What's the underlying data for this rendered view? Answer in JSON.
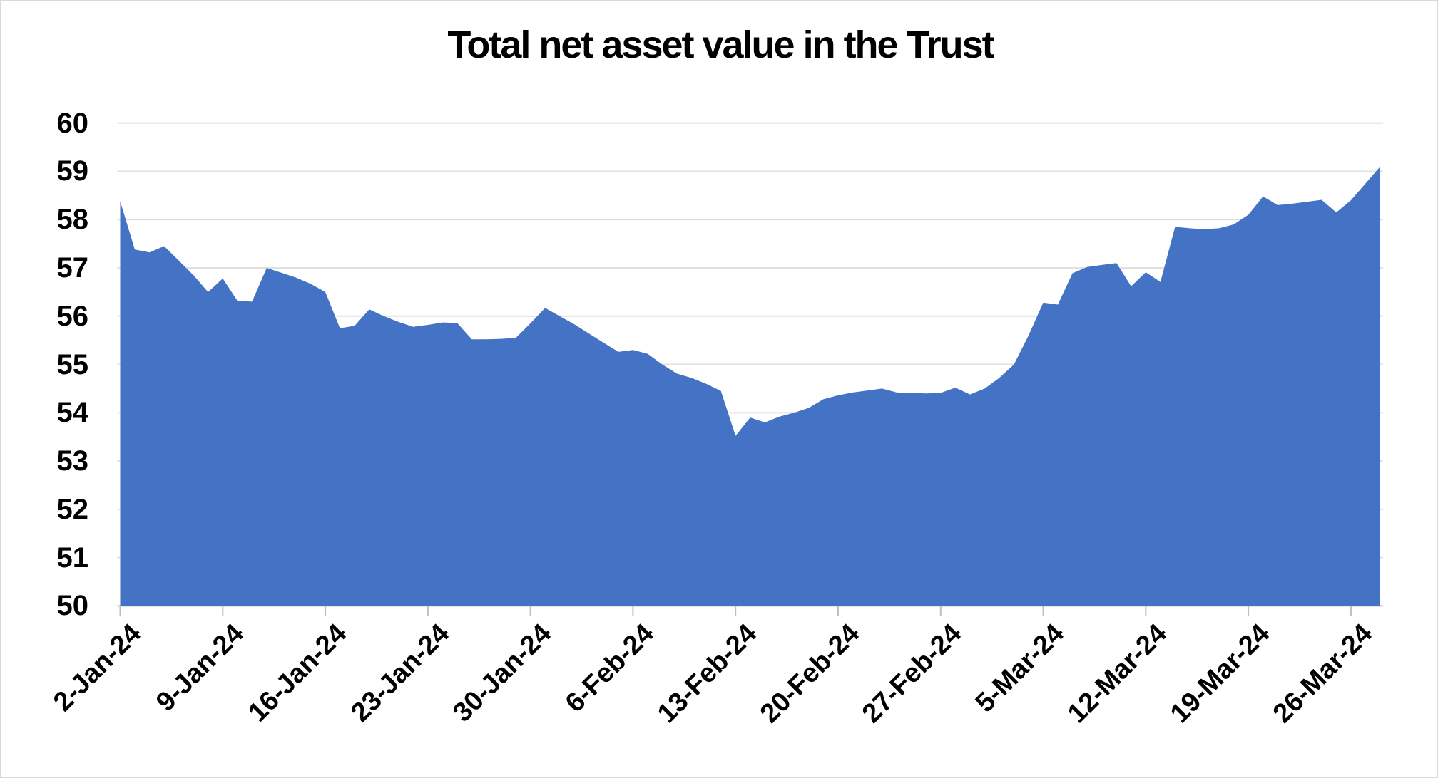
{
  "chart_data": {
    "type": "area",
    "title": "Total net asset value in the Trust",
    "xlabel": "",
    "ylabel": "",
    "ylim": [
      50,
      60
    ],
    "ytick_step": 1,
    "yticks": [
      60,
      59,
      58,
      57,
      56,
      55,
      54,
      53,
      52,
      51,
      50
    ],
    "x_tick_interval": 7,
    "x_tick_labels": [
      "2-Jan-24",
      "9-Jan-24",
      "16-Jan-24",
      "23-Jan-24",
      "30-Jan-24",
      "6-Feb-24",
      "13-Feb-24",
      "20-Feb-24",
      "27-Feb-24",
      "5-Mar-24",
      "12-Mar-24",
      "19-Mar-24",
      "26-Mar-24"
    ],
    "grid": "horizontal",
    "legend": "none",
    "colors": {
      "area": "#4472C4",
      "gridline": "#e0e0e0",
      "axis": "#bfbfbf",
      "text": "#000000",
      "background": "#ffffff",
      "border": "#d9d9d9"
    },
    "x": [
      "2-Jan-24",
      "3-Jan-24",
      "4-Jan-24",
      "5-Jan-24",
      "6-Jan-24",
      "7-Jan-24",
      "8-Jan-24",
      "9-Jan-24",
      "10-Jan-24",
      "11-Jan-24",
      "12-Jan-24",
      "13-Jan-24",
      "14-Jan-24",
      "15-Jan-24",
      "16-Jan-24",
      "17-Jan-24",
      "18-Jan-24",
      "19-Jan-24",
      "20-Jan-24",
      "21-Jan-24",
      "22-Jan-24",
      "23-Jan-24",
      "24-Jan-24",
      "25-Jan-24",
      "26-Jan-24",
      "27-Jan-24",
      "28-Jan-24",
      "29-Jan-24",
      "30-Jan-24",
      "31-Jan-24",
      "1-Feb-24",
      "2-Feb-24",
      "3-Feb-24",
      "4-Feb-24",
      "5-Feb-24",
      "6-Feb-24",
      "7-Feb-24",
      "8-Feb-24",
      "9-Feb-24",
      "10-Feb-24",
      "11-Feb-24",
      "12-Feb-24",
      "13-Feb-24",
      "14-Feb-24",
      "15-Feb-24",
      "16-Feb-24",
      "17-Feb-24",
      "18-Feb-24",
      "19-Feb-24",
      "20-Feb-24",
      "21-Feb-24",
      "22-Feb-24",
      "23-Feb-24",
      "24-Feb-24",
      "25-Feb-24",
      "26-Feb-24",
      "27-Feb-24",
      "28-Feb-24",
      "29-Feb-24",
      "1-Mar-24",
      "2-Mar-24",
      "3-Mar-24",
      "4-Mar-24",
      "5-Mar-24",
      "6-Mar-24",
      "7-Mar-24",
      "8-Mar-24",
      "9-Mar-24",
      "10-Mar-24",
      "11-Mar-24",
      "12-Mar-24",
      "13-Mar-24",
      "14-Mar-24",
      "15-Mar-24",
      "16-Mar-24",
      "17-Mar-24",
      "18-Mar-24",
      "19-Mar-24",
      "20-Mar-24",
      "21-Mar-24",
      "22-Mar-24",
      "23-Mar-24",
      "24-Mar-24",
      "25-Mar-24",
      "26-Mar-24",
      "27-Mar-24",
      "28-Mar-24"
    ],
    "values": [
      58.38,
      57.38,
      57.32,
      57.45,
      57.15,
      56.85,
      56.5,
      56.78,
      56.32,
      56.3,
      57.0,
      56.9,
      56.8,
      56.67,
      56.5,
      55.75,
      55.8,
      56.14,
      56.0,
      55.88,
      55.78,
      55.82,
      55.87,
      55.86,
      55.52,
      55.52,
      55.53,
      55.55,
      55.85,
      56.17,
      56.0,
      55.83,
      55.64,
      55.45,
      55.26,
      55.3,
      55.22,
      55.0,
      54.81,
      54.72,
      54.6,
      54.45,
      53.52,
      53.9,
      53.8,
      53.92,
      54.0,
      54.1,
      54.28,
      54.36,
      54.42,
      54.46,
      54.5,
      54.42,
      54.41,
      54.4,
      54.41,
      54.52,
      54.38,
      54.5,
      54.72,
      55.0,
      55.6,
      56.28,
      56.24,
      56.89,
      57.02,
      57.06,
      57.1,
      56.62,
      56.91,
      56.71,
      57.85,
      57.82,
      57.8,
      57.82,
      57.9,
      58.1,
      58.48,
      58.3,
      58.33,
      58.37,
      58.41,
      58.15,
      58.4,
      58.75,
      59.1
    ]
  }
}
